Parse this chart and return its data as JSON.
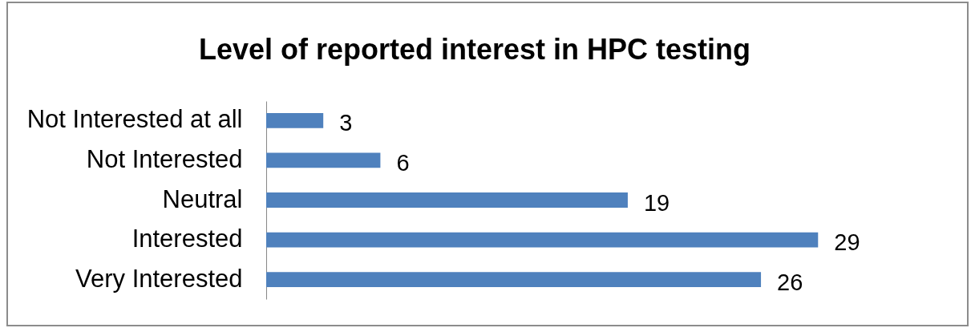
{
  "chart_data": {
    "type": "bar",
    "orientation": "horizontal",
    "title": "Level of reported interest in HPC testing",
    "categories": [
      "Not Interested at all",
      "Not Interested",
      "Neutral",
      "Interested",
      "Very Interested"
    ],
    "values": [
      3,
      6,
      19,
      29,
      26
    ],
    "color": "#4f81bd",
    "data_labels": true
  }
}
